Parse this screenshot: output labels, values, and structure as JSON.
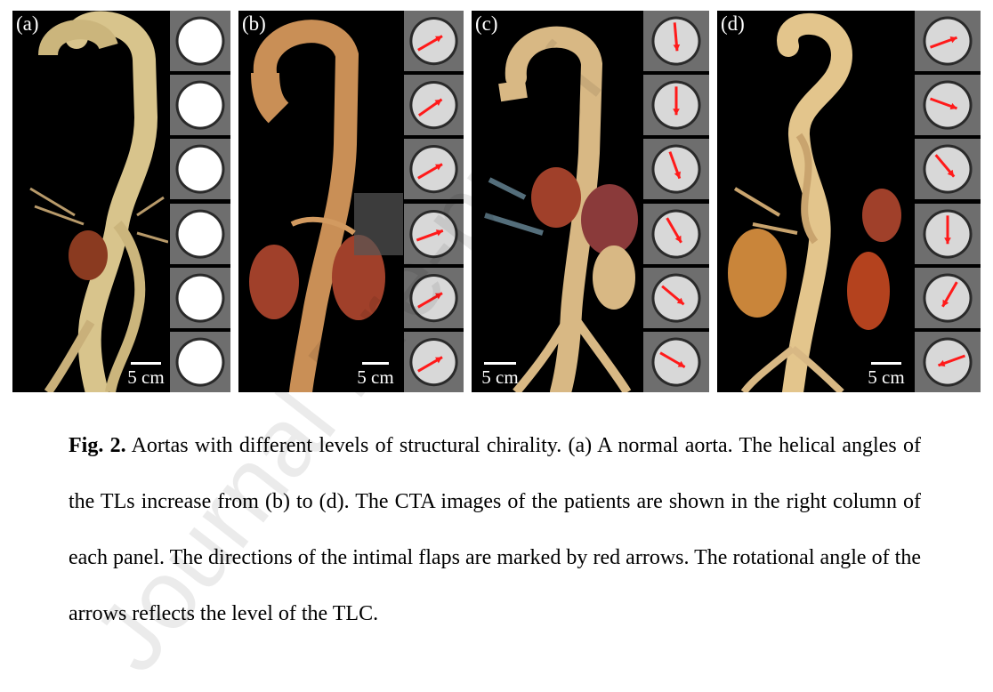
{
  "panels": [
    {
      "label": "(a)",
      "scale": "5 cm",
      "arrow_angles_deg": []
    },
    {
      "label": "(b)",
      "scale": "5 cm",
      "arrow_angles_deg": [
        210,
        215,
        210,
        200,
        210,
        210
      ]
    },
    {
      "label": "(c)",
      "scale": "5 cm",
      "arrow_angles_deg": [
        95,
        90,
        110,
        120,
        140,
        150
      ]
    },
    {
      "label": "(d)",
      "scale": "5 cm",
      "arrow_angles_deg": [
        200,
        160,
        130,
        90,
        60,
        20
      ]
    }
  ],
  "caption": {
    "fig_label": "Fig. 2.",
    "text": " Aortas with different levels of structural chirality. (a) A normal aorta. The helical angles of the TLs increase from (b) to (d). The CTA images of the patients are shown in the right column of each panel. The directions of the intimal flaps are marked by red arrows. The rotational angle of the arrows reflects the level of the TLC."
  },
  "watermark": "Journal Pre-proof",
  "colors": {
    "arrow": "#ff1a1a",
    "aorta": "#d8c48c",
    "kidney": "#a0402a",
    "caption_text": "#000000"
  }
}
